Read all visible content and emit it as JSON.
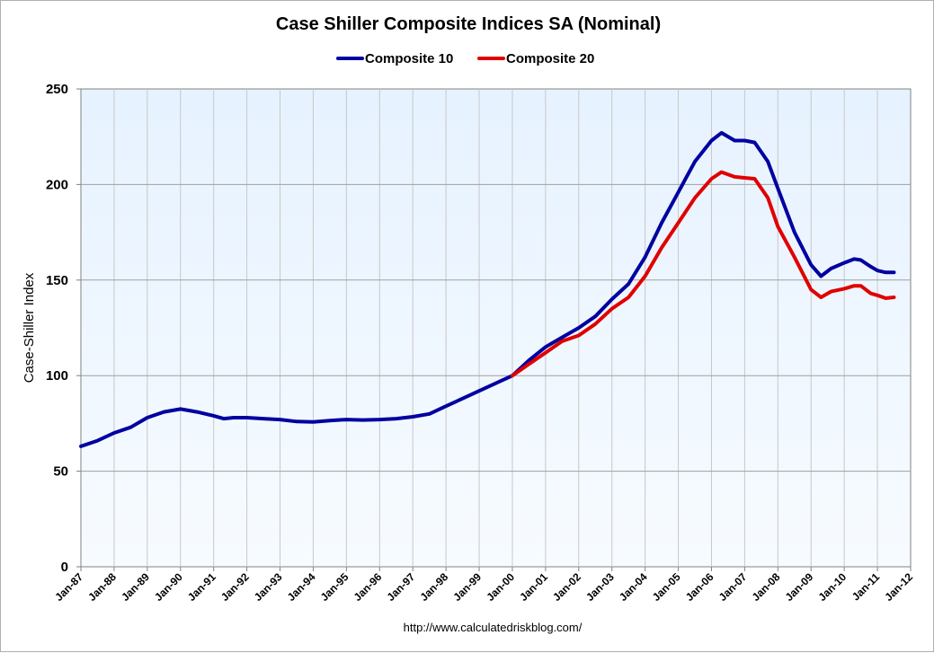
{
  "chart_data": {
    "type": "line",
    "title": "Case Shiller Composite Indices SA (Nominal)",
    "ylabel": "Case-Shiller Index",
    "xlabel": "",
    "source": "http://www.calculatedriskblog.com/",
    "ylim": [
      0,
      250
    ],
    "yticks": [
      0,
      50,
      100,
      150,
      200,
      250
    ],
    "xlim": [
      1987,
      2012
    ],
    "x_ticks": [
      {
        "x": 1987,
        "label": "Jan-87"
      },
      {
        "x": 1988,
        "label": "Jan-88"
      },
      {
        "x": 1989,
        "label": "Jan-89"
      },
      {
        "x": 1990,
        "label": "Jan-90"
      },
      {
        "x": 1991,
        "label": "Jan-91"
      },
      {
        "x": 1992,
        "label": "Jan-92"
      },
      {
        "x": 1993,
        "label": "Jan-93"
      },
      {
        "x": 1994,
        "label": "Jan-94"
      },
      {
        "x": 1995,
        "label": "Jan-95"
      },
      {
        "x": 1996,
        "label": "Jan-96"
      },
      {
        "x": 1997,
        "label": "Jan-97"
      },
      {
        "x": 1998,
        "label": "Jan-98"
      },
      {
        "x": 1999,
        "label": "Jan-99"
      },
      {
        "x": 2000,
        "label": "Jan-00"
      },
      {
        "x": 2001,
        "label": "Jan-01"
      },
      {
        "x": 2002,
        "label": "Jan-02"
      },
      {
        "x": 2003,
        "label": "Jan-03"
      },
      {
        "x": 2004,
        "label": "Jan-04"
      },
      {
        "x": 2005,
        "label": "Jan-05"
      },
      {
        "x": 2006,
        "label": "Jan-06"
      },
      {
        "x": 2007,
        "label": "Jan-07"
      },
      {
        "x": 2008,
        "label": "Jan-08"
      },
      {
        "x": 2009,
        "label": "Jan-09"
      },
      {
        "x": 2010,
        "label": "Jan-10"
      },
      {
        "x": 2011,
        "label": "Jan-11"
      },
      {
        "x": 2012,
        "label": "Jan-12"
      }
    ],
    "grid": true,
    "legend": "top-center",
    "series": [
      {
        "name": "Composite 10",
        "color": "#0000a0",
        "points": [
          [
            1987.0,
            63
          ],
          [
            1987.5,
            66
          ],
          [
            1988.0,
            70
          ],
          [
            1988.5,
            73
          ],
          [
            1989.0,
            78
          ],
          [
            1989.5,
            81
          ],
          [
            1990.0,
            82.5
          ],
          [
            1990.5,
            81
          ],
          [
            1991.0,
            79
          ],
          [
            1991.3,
            77.5
          ],
          [
            1991.6,
            78
          ],
          [
            1992.0,
            78
          ],
          [
            1992.5,
            77.5
          ],
          [
            1993.0,
            77
          ],
          [
            1993.5,
            76
          ],
          [
            1994.0,
            75.8
          ],
          [
            1994.5,
            76.5
          ],
          [
            1995.0,
            77
          ],
          [
            1995.5,
            76.8
          ],
          [
            1996.0,
            77
          ],
          [
            1996.5,
            77.5
          ],
          [
            1997.0,
            78.5
          ],
          [
            1997.5,
            80
          ],
          [
            1998.0,
            84
          ],
          [
            1998.5,
            88
          ],
          [
            1999.0,
            92
          ],
          [
            1999.5,
            96
          ],
          [
            2000.0,
            100
          ],
          [
            2000.5,
            108
          ],
          [
            2001.0,
            115
          ],
          [
            2001.5,
            120
          ],
          [
            2002.0,
            125
          ],
          [
            2002.5,
            131
          ],
          [
            2003.0,
            140
          ],
          [
            2003.5,
            148
          ],
          [
            2004.0,
            162
          ],
          [
            2004.5,
            180
          ],
          [
            2005.0,
            196
          ],
          [
            2005.5,
            212
          ],
          [
            2006.0,
            223
          ],
          [
            2006.3,
            227
          ],
          [
            2006.7,
            223
          ],
          [
            2007.0,
            223
          ],
          [
            2007.3,
            222
          ],
          [
            2007.7,
            212
          ],
          [
            2008.0,
            198
          ],
          [
            2008.5,
            175
          ],
          [
            2009.0,
            158
          ],
          [
            2009.3,
            152
          ],
          [
            2009.6,
            156
          ],
          [
            2010.0,
            159
          ],
          [
            2010.3,
            161
          ],
          [
            2010.5,
            160.5
          ],
          [
            2010.8,
            157
          ],
          [
            2011.0,
            155
          ],
          [
            2011.25,
            154
          ],
          [
            2011.5,
            154
          ]
        ]
      },
      {
        "name": "Composite 20",
        "color": "#e00000",
        "points": [
          [
            2000.0,
            100
          ],
          [
            2000.5,
            106
          ],
          [
            2001.0,
            112
          ],
          [
            2001.5,
            118
          ],
          [
            2002.0,
            121
          ],
          [
            2002.5,
            127
          ],
          [
            2003.0,
            135
          ],
          [
            2003.5,
            141
          ],
          [
            2004.0,
            152
          ],
          [
            2004.5,
            167
          ],
          [
            2005.0,
            180
          ],
          [
            2005.5,
            193
          ],
          [
            2006.0,
            203
          ],
          [
            2006.3,
            206.5
          ],
          [
            2006.7,
            204
          ],
          [
            2007.0,
            203.5
          ],
          [
            2007.3,
            203
          ],
          [
            2007.7,
            193
          ],
          [
            2008.0,
            178
          ],
          [
            2008.5,
            162
          ],
          [
            2009.0,
            145
          ],
          [
            2009.3,
            141
          ],
          [
            2009.6,
            144
          ],
          [
            2010.0,
            145.5
          ],
          [
            2010.3,
            147
          ],
          [
            2010.5,
            147
          ],
          [
            2010.8,
            143
          ],
          [
            2011.0,
            142
          ],
          [
            2011.25,
            140.5
          ],
          [
            2011.5,
            141
          ]
        ]
      }
    ]
  }
}
